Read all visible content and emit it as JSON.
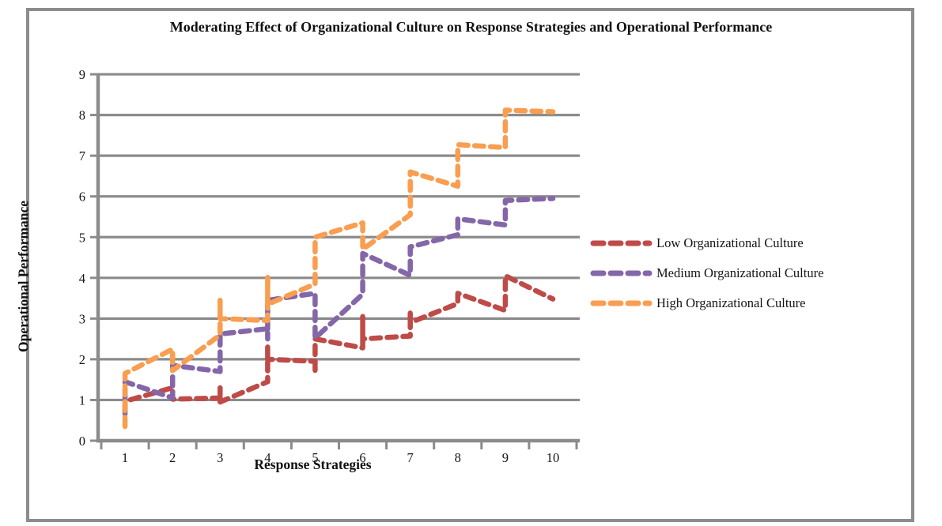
{
  "chart_data": {
    "type": "line",
    "title": "Moderating Effect of Organizational Culture on Response Strategies and Operational Performance",
    "xlabel": "Response Strategies",
    "ylabel": "Operational Performance",
    "x_ticks": [
      "1",
      "2",
      "3",
      "4",
      "5",
      "6",
      "7",
      "8",
      "9",
      "10"
    ],
    "y_ticks": [
      "0",
      "1",
      "2",
      "3",
      "4",
      "5",
      "6",
      "7",
      "8",
      "9"
    ],
    "ylim": [
      0,
      9
    ],
    "x_categories": 10,
    "grid": true,
    "line_style": "thick-dashed-round",
    "legend_position": "right-middle",
    "axis_color": "#8b8b8b",
    "frame_color": "#8c8c8c",
    "series": [
      {
        "name": "Low Organizational Culture",
        "color": "#be4b48",
        "points": [
          [
            1,
            0.72
          ],
          [
            1,
            0.97
          ],
          [
            2,
            1.3
          ],
          [
            2,
            1.02
          ],
          [
            3,
            1.05
          ],
          [
            3,
            1.3
          ],
          [
            3,
            0.95
          ],
          [
            4,
            1.45
          ],
          [
            4,
            2.3
          ],
          [
            4,
            2.0
          ],
          [
            5,
            1.95
          ],
          [
            5,
            1.7
          ],
          [
            5,
            2.5
          ],
          [
            6,
            2.28
          ],
          [
            6,
            3.05
          ],
          [
            6,
            2.5
          ],
          [
            7,
            2.57
          ],
          [
            7,
            3.15
          ],
          [
            7,
            2.9
          ],
          [
            8,
            3.37
          ],
          [
            8,
            3.62
          ],
          [
            9,
            3.2
          ],
          [
            9,
            4.05
          ],
          [
            10,
            3.48
          ]
        ]
      },
      {
        "name": "Medium Organizational Culture",
        "color": "#8467a8",
        "points": [
          [
            1,
            0.65
          ],
          [
            1,
            1.45
          ],
          [
            2,
            1.05
          ],
          [
            2,
            1.85
          ],
          [
            3,
            1.7
          ],
          [
            3,
            2.62
          ],
          [
            4,
            2.75
          ],
          [
            4,
            2.5
          ],
          [
            4,
            3.45
          ],
          [
            5,
            3.62
          ],
          [
            5,
            2.52
          ],
          [
            6,
            3.6
          ],
          [
            6,
            4.6
          ],
          [
            7,
            4.06
          ],
          [
            7,
            4.76
          ],
          [
            8,
            5.06
          ],
          [
            8,
            5.45
          ],
          [
            9,
            5.3
          ],
          [
            9,
            5.9
          ],
          [
            10,
            5.95
          ]
        ]
      },
      {
        "name": "High Organizational Culture",
        "color": "#f99e51",
        "points": [
          [
            1,
            0.35
          ],
          [
            1,
            1.65
          ],
          [
            2,
            2.25
          ],
          [
            2,
            1.72
          ],
          [
            3,
            2.6
          ],
          [
            3,
            3.45
          ],
          [
            3,
            3.0
          ],
          [
            4,
            2.95
          ],
          [
            4,
            4.02
          ],
          [
            4,
            3.35
          ],
          [
            5,
            3.85
          ],
          [
            5,
            5.0
          ],
          [
            6,
            5.35
          ],
          [
            6,
            4.7
          ],
          [
            7,
            5.55
          ],
          [
            7,
            6.6
          ],
          [
            8,
            6.25
          ],
          [
            8,
            7.27
          ],
          [
            9,
            7.2
          ],
          [
            9,
            8.12
          ],
          [
            10,
            8.08
          ]
        ]
      }
    ]
  }
}
